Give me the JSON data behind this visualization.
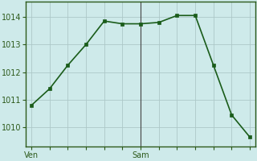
{
  "x": [
    0,
    1,
    2,
    3,
    4,
    5,
    6,
    7,
    8,
    9,
    10,
    11,
    12
  ],
  "y": [
    1010.8,
    1011.4,
    1012.25,
    1013.0,
    1013.85,
    1013.75,
    1013.75,
    1013.8,
    1014.05,
    1014.05,
    1012.25,
    1010.45,
    1009.65
  ],
  "xtick_positions_all": [
    0,
    1,
    2,
    3,
    4,
    5,
    6,
    7,
    8,
    9,
    10,
    11,
    12
  ],
  "xtick_labels_sparse": {
    "0": "Ven",
    "6": "Sam"
  },
  "ytick_positions": [
    1010,
    1011,
    1012,
    1013,
    1014
  ],
  "ylim": [
    1009.3,
    1014.55
  ],
  "xlim": [
    -0.3,
    12.3
  ],
  "line_color": "#1a5c1a",
  "marker_color": "#1a5c1a",
  "bg_color": "#ceeaea",
  "grid_color": "#adc8c8",
  "axis_color": "#2d5a1b",
  "tick_label_color": "#2d5a1b",
  "marker_size": 3.0,
  "line_width": 1.2,
  "vline_sam_color": "#444444",
  "vline_ven_color": "#2d5a1b",
  "tick_fontsize": 7,
  "ylabel_fontsize": 7
}
